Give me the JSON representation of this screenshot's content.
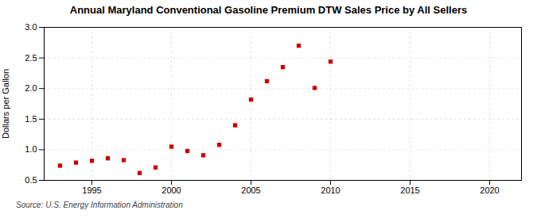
{
  "chart_data": {
    "type": "scatter",
    "title": "Annual Maryland Conventional Gasoline Premium DTW Sales Price by All Sellers",
    "ylabel": "Dollars per Gallon",
    "source": "Source: U.S. Energy Information Administration",
    "x": [
      1993,
      1994,
      1995,
      1996,
      1997,
      1998,
      1999,
      2000,
      2001,
      2002,
      2003,
      2004,
      2005,
      2006,
      2007,
      2008,
      2009,
      2010
    ],
    "values": [
      0.74,
      0.79,
      0.82,
      0.86,
      0.83,
      0.62,
      0.71,
      1.05,
      0.98,
      0.91,
      1.08,
      1.4,
      1.82,
      2.12,
      2.35,
      2.7,
      2.01,
      2.44
    ],
    "color": "#cc0000",
    "marker": "square",
    "xlim": [
      1992,
      2022
    ],
    "ylim": [
      0.5,
      3.0
    ],
    "xticks": [
      1995,
      2000,
      2005,
      2010,
      2015,
      2020
    ],
    "yticks": [
      0.5,
      {
        "value": 1,
        "label": "1.0"
      },
      1.5,
      {
        "value": 2,
        "label": "2.0"
      },
      2.5,
      {
        "value": 3,
        "label": "3.0"
      }
    ],
    "grid": true
  }
}
